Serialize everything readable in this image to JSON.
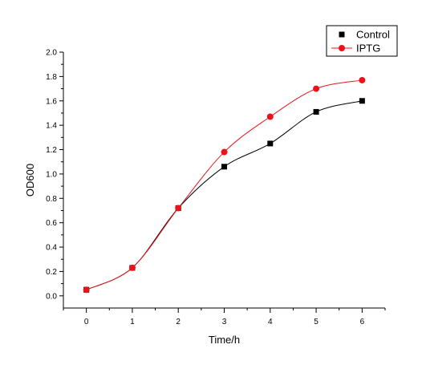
{
  "chart_data": {
    "type": "line",
    "x": [
      0,
      1,
      2,
      3,
      4,
      5,
      6
    ],
    "xlabel": "Time/h",
    "ylabel": "OD600",
    "xlim": [
      -0.5,
      6.5
    ],
    "ylim": [
      -0.1,
      2.0
    ],
    "xticks": [
      "0",
      "1",
      "2",
      "3",
      "4",
      "5",
      "6"
    ],
    "yticks": [
      "0.0",
      "0.2",
      "0.4",
      "0.6",
      "0.8",
      "1.0",
      "1.2",
      "1.4",
      "1.6",
      "1.8",
      "2.0"
    ],
    "grid": false,
    "legend_position": "top-right",
    "series": [
      {
        "name": "Control",
        "values": [
          0.05,
          0.23,
          0.72,
          1.06,
          1.25,
          1.51,
          1.6
        ],
        "color": "#000000",
        "marker": "square"
      },
      {
        "name": "IPTG",
        "values": [
          0.05,
          0.23,
          0.72,
          1.18,
          1.47,
          1.7,
          1.77
        ],
        "color": "#e8141a",
        "marker": "circle"
      }
    ]
  }
}
